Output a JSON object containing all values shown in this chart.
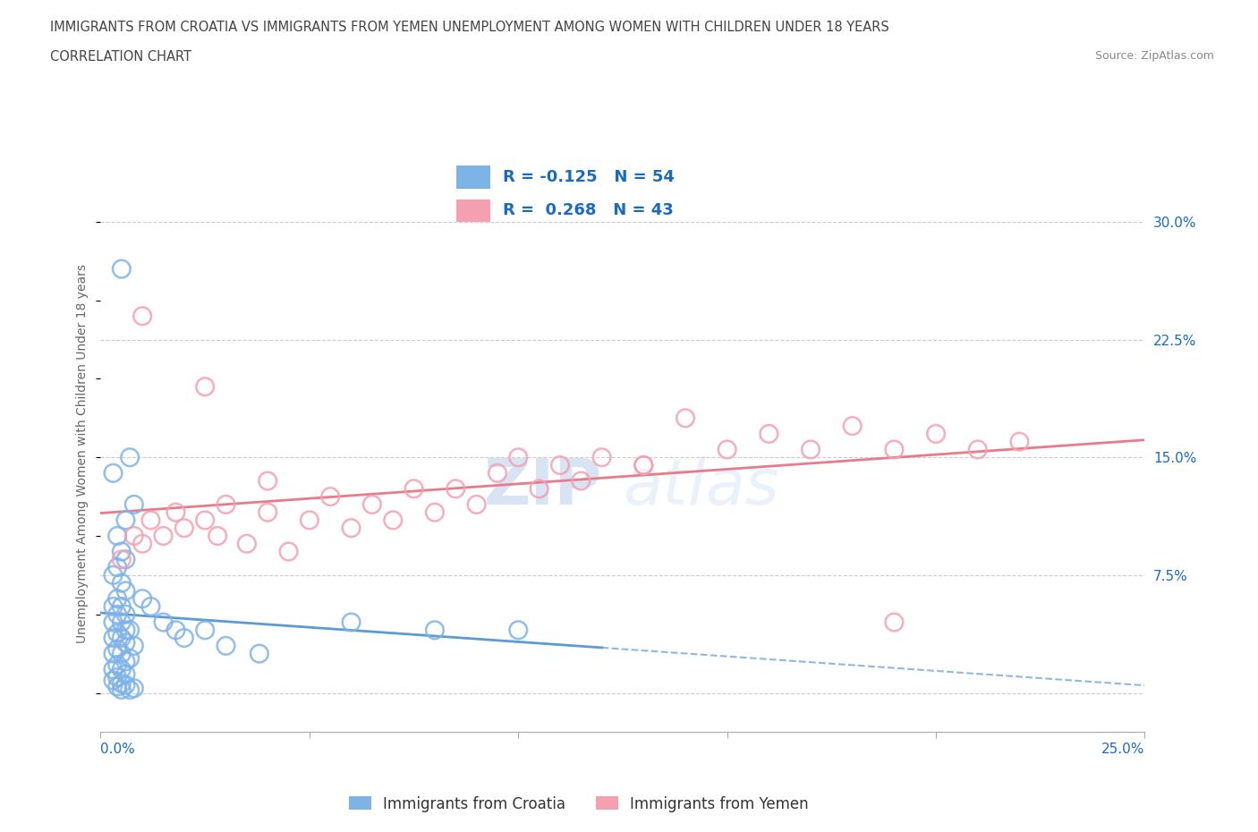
{
  "title_line1": "IMMIGRANTS FROM CROATIA VS IMMIGRANTS FROM YEMEN UNEMPLOYMENT AMONG WOMEN WITH CHILDREN UNDER 18 YEARS",
  "title_line2": "CORRELATION CHART",
  "source": "Source: ZipAtlas.com",
  "xlabel_bottom_left": "0.0%",
  "xlabel_bottom_right": "25.0%",
  "ylabel": "Unemployment Among Women with Children Under 18 years",
  "yticks": [
    0.0,
    0.075,
    0.15,
    0.225,
    0.3
  ],
  "ytick_labels": [
    "",
    "7.5%",
    "15.0%",
    "22.5%",
    "30.0%"
  ],
  "xlim": [
    0.0,
    0.25
  ],
  "ylim": [
    -0.025,
    0.33
  ],
  "watermark_zip": "ZIP",
  "watermark_atlas": "atlas",
  "croatia_color": "#7EB3E8",
  "yemen_color": "#F4A0B0",
  "croatia_R": -0.125,
  "croatia_N": 54,
  "yemen_R": 0.268,
  "yemen_N": 43,
  "legend_label_croatia": "Immigrants from Croatia",
  "legend_label_yemen": "Immigrants from Yemen",
  "croatia_scatter_x": [
    0.005,
    0.007,
    0.003,
    0.008,
    0.006,
    0.004,
    0.005,
    0.006,
    0.004,
    0.003,
    0.005,
    0.006,
    0.004,
    0.003,
    0.005,
    0.006,
    0.004,
    0.003,
    0.005,
    0.007,
    0.006,
    0.004,
    0.003,
    0.005,
    0.006,
    0.008,
    0.004,
    0.003,
    0.005,
    0.007,
    0.006,
    0.004,
    0.003,
    0.005,
    0.006,
    0.004,
    0.003,
    0.005,
    0.006,
    0.004,
    0.008,
    0.007,
    0.005,
    0.01,
    0.012,
    0.015,
    0.018,
    0.02,
    0.025,
    0.03,
    0.038,
    0.06,
    0.08,
    0.1
  ],
  "croatia_scatter_y": [
    0.27,
    0.15,
    0.14,
    0.12,
    0.11,
    0.1,
    0.09,
    0.085,
    0.08,
    0.075,
    0.07,
    0.065,
    0.06,
    0.055,
    0.055,
    0.05,
    0.05,
    0.045,
    0.045,
    0.04,
    0.04,
    0.038,
    0.035,
    0.035,
    0.032,
    0.03,
    0.028,
    0.025,
    0.025,
    0.022,
    0.02,
    0.018,
    0.015,
    0.015,
    0.012,
    0.01,
    0.008,
    0.006,
    0.005,
    0.004,
    0.003,
    0.002,
    0.002,
    0.06,
    0.055,
    0.045,
    0.04,
    0.035,
    0.04,
    0.03,
    0.025,
    0.045,
    0.04,
    0.04
  ],
  "yemen_scatter_x": [
    0.005,
    0.008,
    0.01,
    0.012,
    0.015,
    0.018,
    0.02,
    0.025,
    0.028,
    0.03,
    0.035,
    0.04,
    0.045,
    0.05,
    0.055,
    0.06,
    0.065,
    0.07,
    0.075,
    0.08,
    0.085,
    0.09,
    0.095,
    0.1,
    0.105,
    0.11,
    0.115,
    0.12,
    0.13,
    0.14,
    0.15,
    0.16,
    0.17,
    0.18,
    0.19,
    0.2,
    0.21,
    0.22,
    0.01,
    0.025,
    0.04,
    0.19,
    0.13
  ],
  "yemen_scatter_y": [
    0.085,
    0.1,
    0.095,
    0.11,
    0.1,
    0.115,
    0.105,
    0.11,
    0.1,
    0.12,
    0.095,
    0.115,
    0.09,
    0.11,
    0.125,
    0.105,
    0.12,
    0.11,
    0.13,
    0.115,
    0.13,
    0.12,
    0.14,
    0.15,
    0.13,
    0.145,
    0.135,
    0.15,
    0.145,
    0.175,
    0.155,
    0.165,
    0.155,
    0.17,
    0.155,
    0.165,
    0.155,
    0.16,
    0.24,
    0.195,
    0.135,
    0.045,
    0.145
  ],
  "bg_color": "#FFFFFF",
  "grid_color": "#CCCCCC",
  "legend_text_color": "#1a6bbf",
  "trendline_croatia_color": "#5B9BD5",
  "trendline_yemen_color": "#E87A8A"
}
